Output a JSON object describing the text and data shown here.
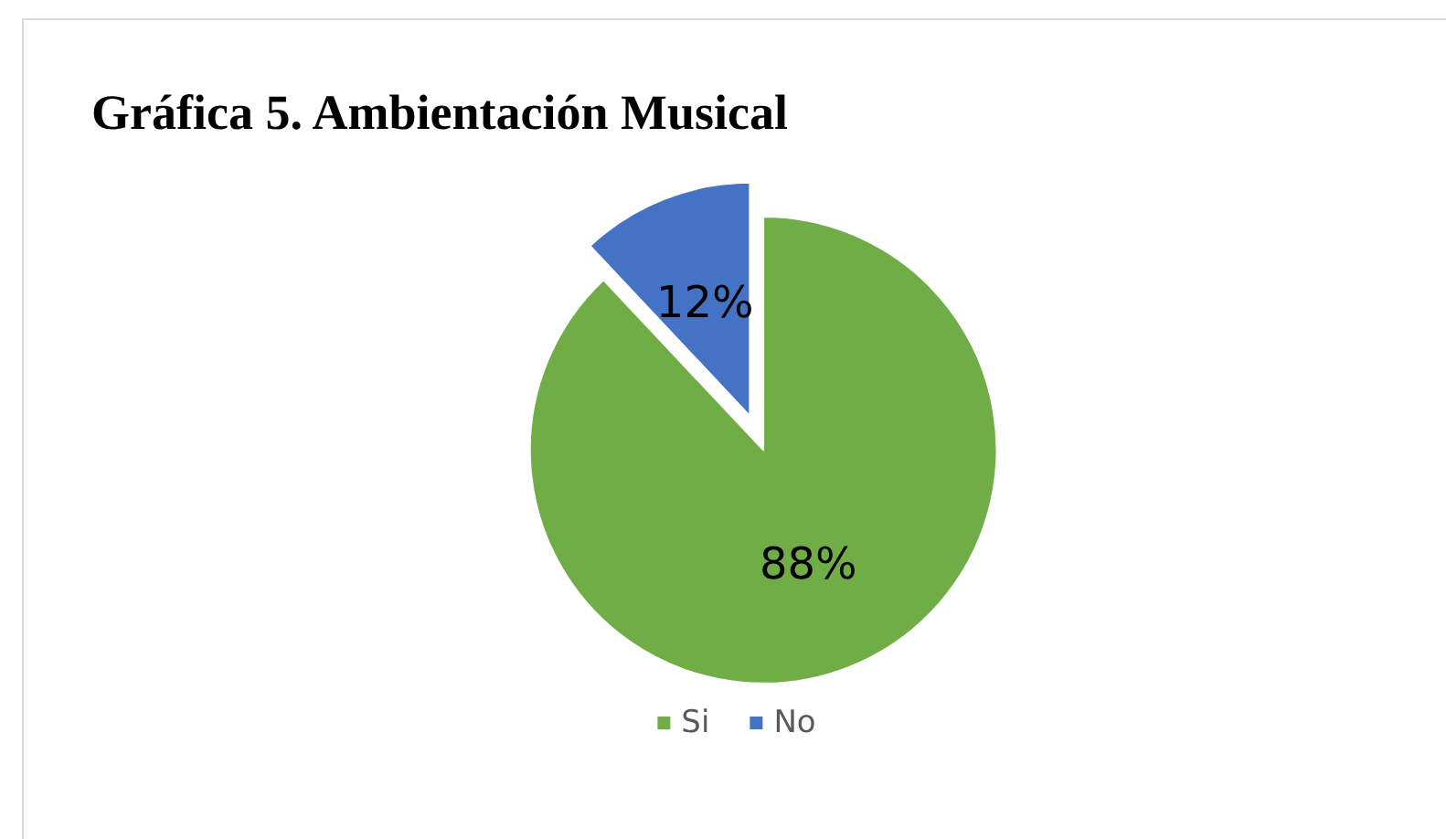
{
  "chart_data": {
    "type": "pie",
    "title": "Gráfica 5. Ambientación Musical",
    "categories": [
      "Si",
      "No"
    ],
    "values": [
      88,
      12
    ],
    "colors": [
      "#70ad47",
      "#4472c4"
    ],
    "value_labels": [
      "88%",
      "12%"
    ],
    "legend": "bottom"
  }
}
